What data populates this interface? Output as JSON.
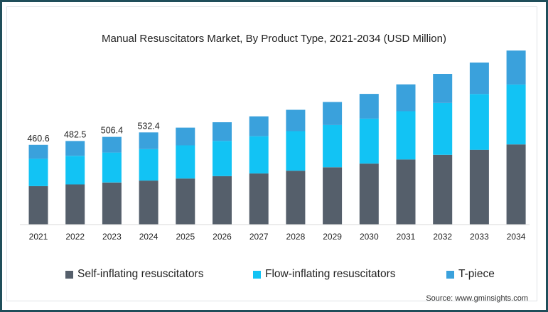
{
  "chart_data": {
    "type": "bar",
    "stacked": true,
    "title": "Manual Resuscitators Market, By Product Type, 2021-2034 (USD Million)",
    "xlabel": "",
    "ylabel": "",
    "categories": [
      "2021",
      "2022",
      "2023",
      "2024",
      "2025",
      "2026",
      "2027",
      "2028",
      "2029",
      "2030",
      "2031",
      "2032",
      "2033",
      "2034"
    ],
    "series": [
      {
        "name": "Self-inflating resuscitators",
        "color": "#555f6b",
        "values": [
          222,
          232,
          243,
          254,
          266,
          280,
          295,
          311,
          331,
          352,
          376,
          403,
          432,
          463
        ]
      },
      {
        "name": "Flow-inflating resuscitators",
        "color": "#12c3f4",
        "values": [
          158,
          165,
          173,
          182,
          192,
          203,
          215,
          229,
          244,
          260,
          279,
          299,
          322,
          346
        ]
      },
      {
        "name": "T-piece",
        "color": "#3aa1dc",
        "values": [
          80.6,
          85.5,
          90.4,
          96.4,
          102,
          108,
          115,
          123,
          133,
          143,
          155,
          168,
          182,
          196
        ]
      }
    ],
    "data_labels": [
      "460.6",
      "482.5",
      "506.4",
      "532.4",
      "",
      "",
      "",
      "",
      "",
      "",
      "",
      "",
      "",
      ""
    ],
    "ylim": [
      0,
      1100
    ],
    "grid": false,
    "legend_position": "bottom"
  },
  "source": "Source: www.gminsights.com"
}
